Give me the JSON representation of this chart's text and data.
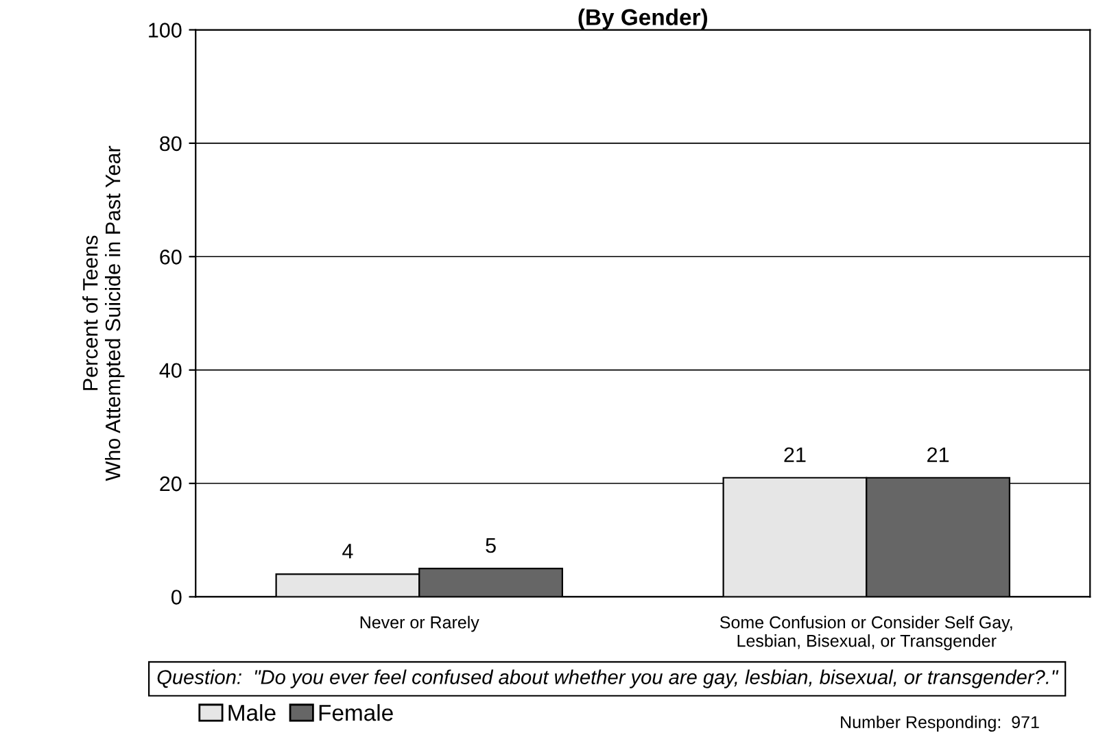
{
  "chart_data": {
    "type": "bar",
    "title": "(By Gender)",
    "ylabel": "Percent of Teens\nWho Attempted Suicide in Past Year",
    "categories": [
      "Never or Rarely",
      "Some Confusion or Consider Self Gay,\nLesbian, Bisexual, or Transgender"
    ],
    "series": [
      {
        "name": "Male",
        "color": "#e6e6e6",
        "values": [
          4,
          21
        ]
      },
      {
        "name": "Female",
        "color": "#666666",
        "values": [
          5,
          21
        ]
      }
    ],
    "ylim": [
      0,
      100
    ],
    "yticks": [
      0,
      20,
      40,
      60,
      80,
      100
    ],
    "grid": "y",
    "data_labels": true,
    "legend": "bottom",
    "annotations": [
      "Question:  \"Do you ever feel confused about whether you are gay, lesbian, bisexual, or transgender?.\"",
      "Number Responding:  971"
    ]
  }
}
